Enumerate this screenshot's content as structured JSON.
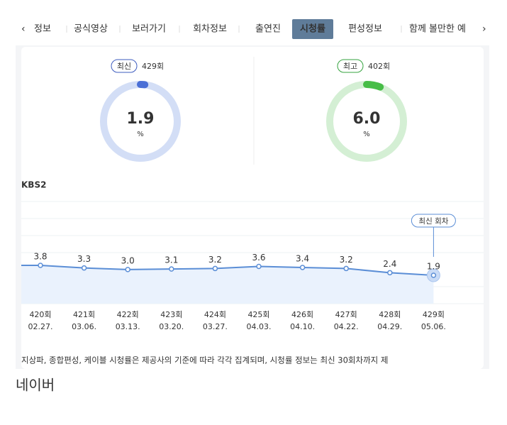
{
  "tabs": [
    {
      "label": "정보"
    },
    {
      "label": "공식영상"
    },
    {
      "label": "보러가기"
    },
    {
      "label": "회차정보"
    },
    {
      "label": "출연진"
    },
    {
      "label": "시청률",
      "active": true
    },
    {
      "label": "편성정보"
    },
    {
      "label": "함께 볼만한 예"
    }
  ],
  "gauges": [
    {
      "badge": "최신",
      "episode": "429회",
      "value": 1.9,
      "unit": "%",
      "color": "#4a6fd6",
      "track": "#d3def6",
      "text_color": "#3d5cbf"
    },
    {
      "badge": "최고",
      "episode": "402회",
      "value": 6.0,
      "value_label": "6.0",
      "unit": "%",
      "color": "#47bd47",
      "track": "#d4efd4",
      "text_color": "#35a33f"
    }
  ],
  "chart_data": {
    "type": "line",
    "section_label": "KBS2",
    "latest_label": "최신 회차",
    "categories": [
      "420회",
      "421회",
      "422회",
      "423회",
      "424회",
      "425회",
      "426회",
      "427회",
      "428회",
      "429회"
    ],
    "dates": [
      "02.27.",
      "03.06.",
      "03.13.",
      "03.20.",
      "03.27.",
      "04.03.",
      "04.10.",
      "04.22.",
      "04.29.",
      "05.06."
    ],
    "values": [
      3.8,
      3.3,
      3.0,
      3.1,
      3.2,
      3.6,
      3.4,
      3.2,
      2.4,
      1.9
    ],
    "value_labels": [
      "3.8",
      "3.3",
      "3.0",
      "3.1",
      "3.2",
      "3.6",
      "3.4",
      "3.2",
      "2.4",
      "1.9"
    ],
    "color": "#5b8ed6"
  },
  "footnote": "지상파, 종합편성, 케이블 시청률은 제공사의 기준에 따라 각각 집계되며, 시청률 정보는 최신 30회차까지 제",
  "caption": "네이버"
}
